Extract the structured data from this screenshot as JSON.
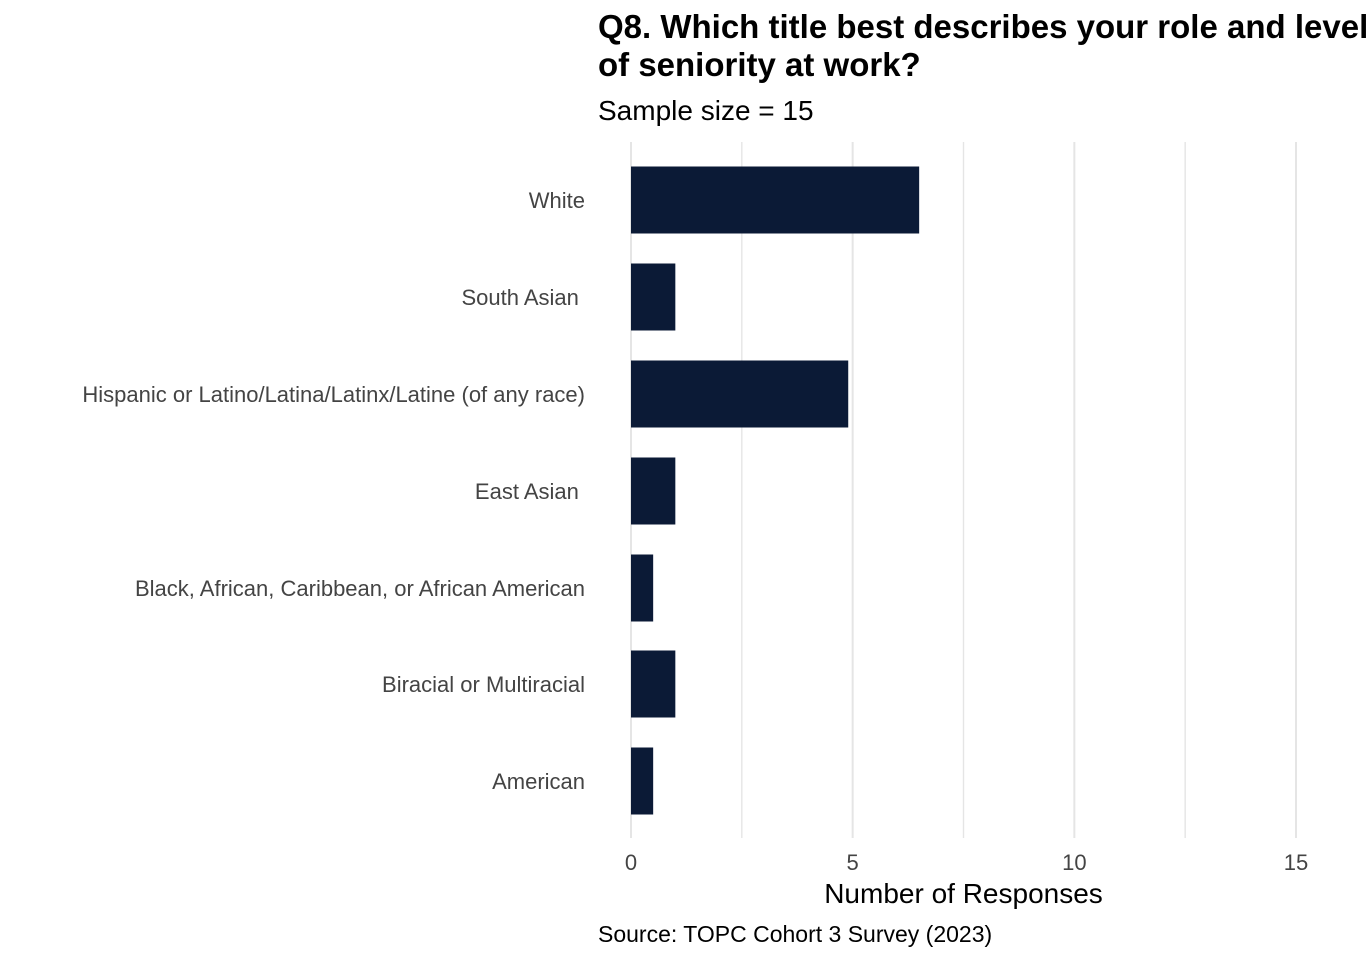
{
  "chart_data": {
    "type": "bar",
    "orientation": "horizontal",
    "title": "Q8. Which title best describes your role and level\nof seniority at work?",
    "subtitle": "Sample size = 15",
    "caption": "Source: TOPC Cohort 3 Survey (2023)",
    "xlabel": "Number of Responses",
    "ylabel": "",
    "xlim": [
      0,
      15
    ],
    "x_ticks": [
      0,
      5,
      10,
      15
    ],
    "categories": [
      "White",
      "South Asian ",
      "Hispanic or Latino/Latina/Latinx/Latine (of any race)",
      "East Asian ",
      "Black, African, Caribbean, or African American",
      "Biracial or Multiracial",
      "American"
    ],
    "values": [
      6.5,
      1,
      4.9,
      1,
      0.5,
      1,
      0.5
    ],
    "grid": "vertical",
    "legend": "none",
    "bar_color": "#0b1a36",
    "grid_color": "#e5e5e5",
    "label_color": "#444444"
  }
}
